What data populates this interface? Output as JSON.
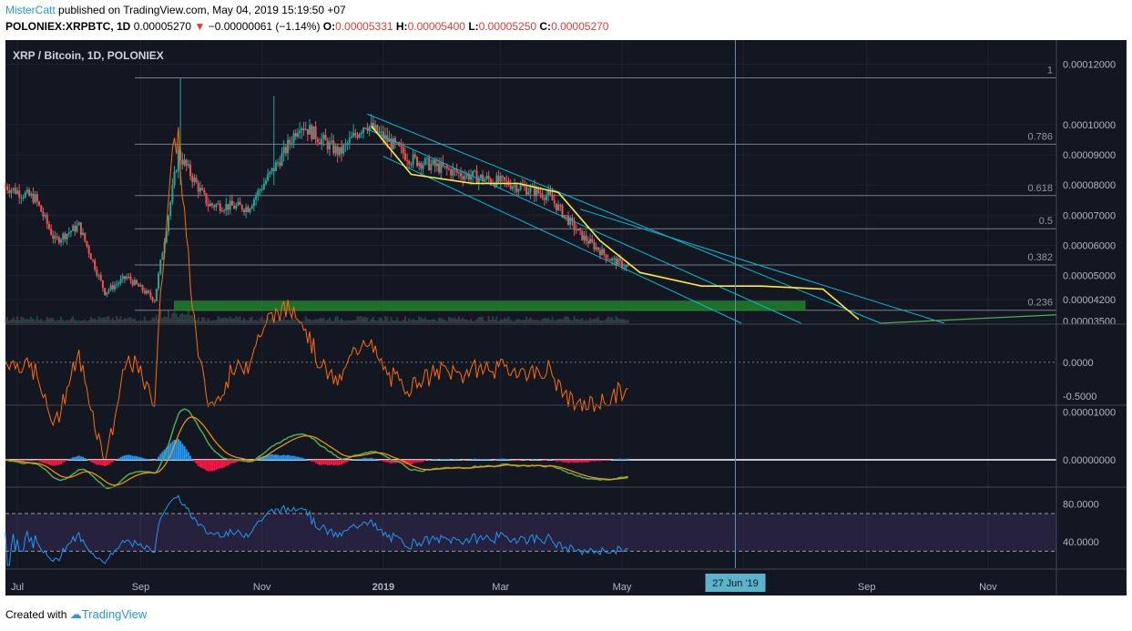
{
  "header": {
    "author": "MisterCatt",
    "published": "published on TradingView.com, May 04, 2019 15:19:50 +07",
    "symbol": "POLONIEX:XRPBTC, 1D",
    "last": "0.00005270",
    "change_arrow": "▼",
    "change": "−0.00000061 (−1.14%)",
    "o_label": "O:",
    "o": "0.00005331",
    "h_label": "H:",
    "h": "0.00005400",
    "l_label": "L:",
    "l": "0.00005250",
    "c_label": "C:",
    "c": "0.00005270"
  },
  "footer": {
    "created_with": "Created with",
    "brand": "TradingView"
  },
  "colors": {
    "background": "#131722",
    "up": "#26a69a",
    "down": "#ef5350",
    "fib": "#787b86",
    "channel": "#00bcd4",
    "curve": "#ffeb3b",
    "support_zone": "#1b5e20",
    "indicator1": "#ff6d00",
    "rsi": "#2196f3"
  },
  "chart_data": [
    {
      "type": "candlestick",
      "title": "XRP / Bitcoin, 1D, POLONIEX",
      "x_ticks": [
        "Jul",
        "Sep",
        "Nov",
        "2019",
        "Mar",
        "May",
        "Jul",
        "Sep",
        "Nov"
      ],
      "crosshair_date": "27 Jun '19",
      "y_ticks": [
        "0.00012000",
        "0.00010000",
        "0.00009000",
        "0.00008000",
        "0.00007000",
        "0.00006000",
        "0.00005000",
        "0.00004200",
        "0.00003500"
      ],
      "ylim": [
        3.42e-05,
        0.000128
      ],
      "fib_levels": [
        {
          "label": "1",
          "value": 0.0001155
        },
        {
          "label": "0.786",
          "value": 9.35e-05
        },
        {
          "label": "0.618",
          "value": 7.65e-05
        },
        {
          "label": "0.5",
          "value": 6.55e-05
        },
        {
          "label": "0.382",
          "value": 5.35e-05
        },
        {
          "label": "0.236",
          "value": 3.85e-05
        }
      ],
      "support_zone": [
        3.85e-05,
        4.15e-05
      ],
      "close_series_approx": [
        {
          "date": "2018-06-25",
          "close": 7.95e-05
        },
        {
          "date": "2018-07-10",
          "close": 7.55e-05
        },
        {
          "date": "2018-07-20",
          "close": 6.15e-05
        },
        {
          "date": "2018-08-01",
          "close": 6.65e-05
        },
        {
          "date": "2018-08-14",
          "close": 4.45e-05
        },
        {
          "date": "2018-08-25",
          "close": 4.95e-05
        },
        {
          "date": "2018-09-08",
          "close": 4.2e-05
        },
        {
          "date": "2018-09-20",
          "close": 9.05e-05
        },
        {
          "date": "2018-10-05",
          "close": 7.35e-05
        },
        {
          "date": "2018-10-25",
          "close": 7.25e-05
        },
        {
          "date": "2018-11-12",
          "close": 9.05e-05
        },
        {
          "date": "2018-11-20",
          "close": 0.0001005
        },
        {
          "date": "2018-12-10",
          "close": 9.05e-05
        },
        {
          "date": "2018-12-23",
          "close": 0.0001005
        },
        {
          "date": "2019-01-15",
          "close": 8.85e-05
        },
        {
          "date": "2019-02-10",
          "close": 8.35e-05
        },
        {
          "date": "2019-03-05",
          "close": 8.05e-05
        },
        {
          "date": "2019-03-25",
          "close": 7.65e-05
        },
        {
          "date": "2019-04-10",
          "close": 6.35e-05
        },
        {
          "date": "2019-04-25",
          "close": 5.55e-05
        },
        {
          "date": "2019-05-04",
          "close": 5.27e-05
        }
      ]
    },
    {
      "type": "line",
      "y_ticks": [
        "0.0000",
        "-0.5000"
      ],
      "ylim": [
        -0.62,
        0.55
      ]
    },
    {
      "type": "line",
      "y_ticks": [
        "0.00001000",
        "0.00000000"
      ],
      "ylim": [
        -5.5e-06,
        1.12e-05
      ]
    },
    {
      "type": "line",
      "y_ticks": [
        "80.0000",
        "40.0000"
      ],
      "ylim": [
        12,
        97
      ],
      "band": [
        30,
        70
      ]
    }
  ]
}
